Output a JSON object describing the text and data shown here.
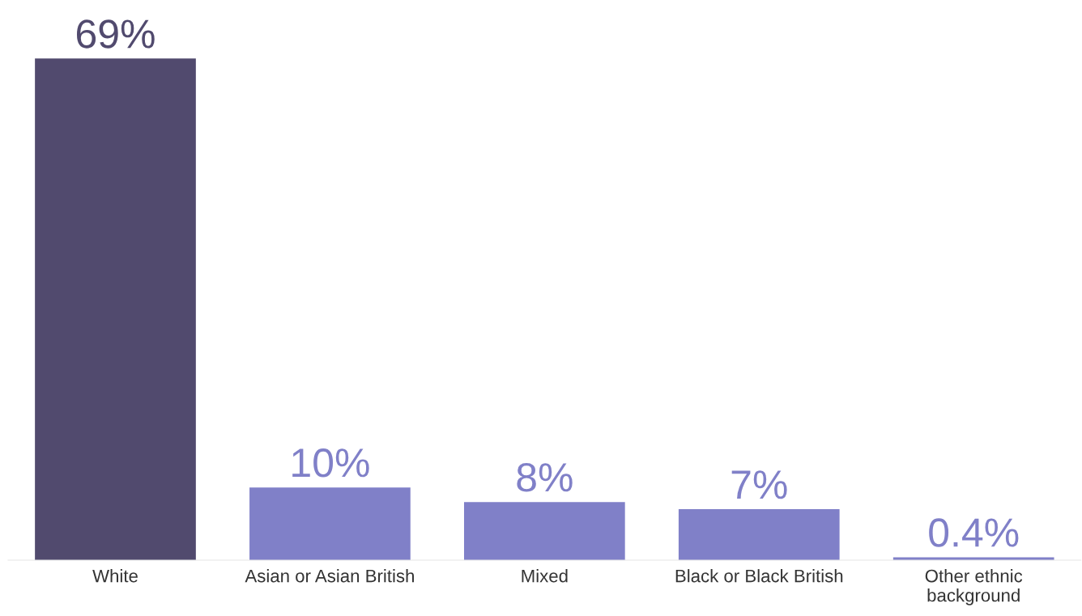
{
  "chart_data": {
    "type": "bar",
    "categories": [
      "White",
      "Asian or Asian British",
      "Mixed",
      "Black or Black British",
      "Other ethnic\nbackground"
    ],
    "values": [
      69,
      10,
      8,
      7,
      0.4
    ],
    "colors": [
      "#514a6e",
      "#8080c8",
      "#8080c8",
      "#8080c8",
      "#8080c8"
    ],
    "value_labels": [
      "69%",
      "10%",
      "8%",
      "7%",
      "0.4%"
    ],
    "tick_labels": "x",
    "grid": false,
    "legend": false
  }
}
